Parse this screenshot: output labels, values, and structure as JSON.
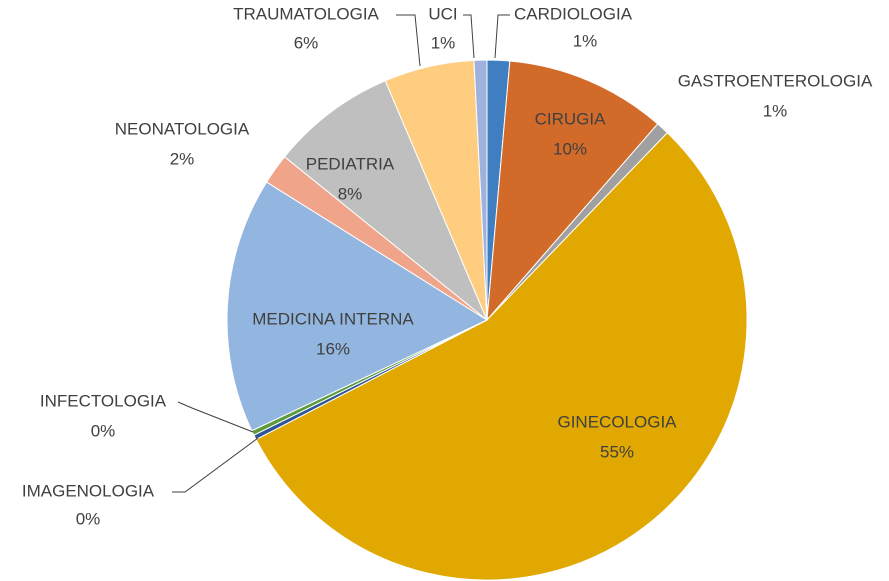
{
  "chart_data": {
    "type": "pie",
    "categories": [
      "CARDIOLOGIA",
      "CIRUGIA",
      "GASTROENTEROLOGIA",
      "GINECOLOGIA",
      "IMAGENOLOGIA",
      "INFECTOLOGIA",
      "MEDICINA INTERNA",
      "NEONATOLOGIA",
      "PEDIATRIA",
      "TRAUMATOLOGIA",
      "UCI"
    ],
    "values": [
      1.4,
      10,
      0.8,
      55.2,
      0.3,
      0.3,
      15.9,
      1.9,
      7.8,
      5.6,
      0.8
    ],
    "value_labels": [
      "1%",
      "10%",
      "1%",
      "55%",
      "0%",
      "0%",
      "16%",
      "2%",
      "8%",
      "6%",
      "1%"
    ],
    "colors": [
      "#3f7fc1",
      "#d26b2a",
      "#a0a0a0",
      "#e0a800",
      "#2f5597",
      "#5b9b3a",
      "#93b6e0",
      "#f0a48a",
      "#bfbfbf",
      "#ffcd7f",
      "#9fb1dd"
    ]
  }
}
